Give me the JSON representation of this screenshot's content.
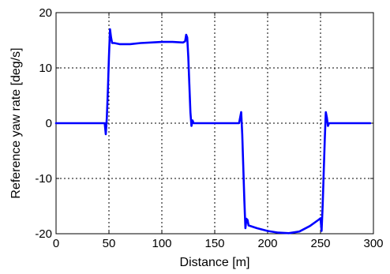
{
  "chart_data": {
    "type": "line",
    "title": "",
    "xlabel": "Distance [m]",
    "ylabel": "Reference yaw rate [deg/s]",
    "xlim": [
      0,
      300
    ],
    "ylim": [
      -20,
      20
    ],
    "xticks": [
      0,
      50,
      100,
      150,
      200,
      250,
      300
    ],
    "yticks": [
      -20,
      -10,
      0,
      10,
      20
    ],
    "grid": true,
    "legend": "none",
    "series": [
      {
        "color": "#0000ff",
        "x": [
          0,
          46,
          47,
          48,
          49,
          50,
          51,
          52,
          53,
          55,
          60,
          70,
          80,
          90,
          100,
          110,
          120,
          122,
          123,
          124,
          125,
          126,
          127,
          128,
          129,
          130,
          135,
          140,
          150,
          160,
          170,
          173,
          175,
          176,
          177,
          178,
          179,
          180,
          181,
          182,
          190,
          200,
          210,
          220,
          230,
          240,
          248,
          250,
          251,
          252,
          253,
          254,
          255,
          256,
          257,
          258,
          260,
          270,
          280,
          290,
          297
        ],
        "y": [
          0,
          0,
          -2,
          1,
          6,
          12,
          17,
          15.5,
          14.5,
          14.5,
          14.3,
          14.3,
          14.5,
          14.6,
          14.7,
          14.7,
          14.6,
          14.8,
          16,
          15.5,
          12,
          7,
          2,
          -0.5,
          0.5,
          0,
          0,
          0,
          0,
          0,
          0,
          0,
          2,
          -2,
          -8,
          -14,
          -19,
          -17.3,
          -17.5,
          -18.5,
          -19.0,
          -19.5,
          -19.8,
          -19.9,
          -19.6,
          -18.6,
          -17.5,
          -17.2,
          -19.5,
          -15,
          -9,
          -3,
          2,
          1,
          -0.5,
          0,
          0,
          0,
          0,
          0,
          0
        ]
      }
    ]
  }
}
